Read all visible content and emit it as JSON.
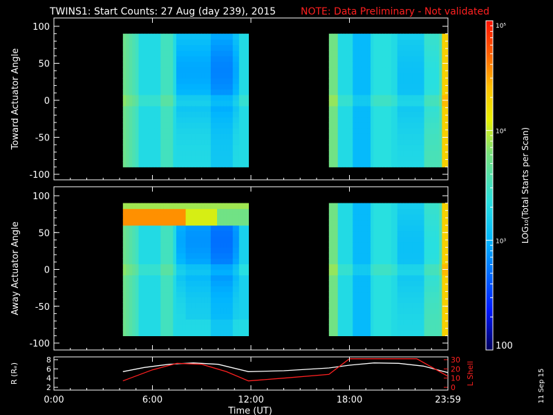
{
  "title": "TWINS1: Start Counts: 27 Aug (day 239), 2015",
  "note": "NOTE: Data Preliminary - Not validated",
  "footer_date": "11 Sep 15",
  "colors": {
    "background": "#000000",
    "axes": "#ffffff",
    "note": "#ff2020",
    "lshell": "#ff2020",
    "radius": "#ffffff"
  },
  "chart_data": [
    {
      "type": "heatmap",
      "panel": "top",
      "ylabel": "Toward Actuator Angle",
      "ylim": [
        -100,
        100
      ],
      "yticks": [
        -100,
        -50,
        0,
        50,
        100
      ],
      "xlim": [
        0,
        24
      ],
      "grid": false,
      "data_blocks": [
        {
          "t_start": 4.2,
          "t_end": 11.85
        },
        {
          "t_start": 16.75,
          "t_end": 24.0
        }
      ],
      "angle_range": [
        -90,
        90
      ],
      "typical_log_counts": 3.3,
      "notes": "yellow-green near 4-5 UT and 16.8 UT, blue band around 8-11 UT"
    },
    {
      "type": "heatmap",
      "panel": "middle",
      "ylabel": "Away Actuator Angle",
      "ylim": [
        -100,
        100
      ],
      "yticks": [
        -100,
        -50,
        0,
        50,
        100
      ],
      "xlim": [
        0,
        24
      ],
      "grid": false,
      "data_blocks": [
        {
          "t_start": 4.2,
          "t_end": 11.85
        },
        {
          "t_start": 16.75,
          "t_end": 24.0
        }
      ],
      "angle_range": [
        -90,
        90
      ],
      "typical_log_counts": 3.3,
      "notes": "red-orange band near +75 deg from 4.2 to ~8 UT"
    },
    {
      "type": "line",
      "panel": "bottom",
      "xlabel": "Time (UT)",
      "xlim": [
        0,
        24
      ],
      "xticks": [
        "0:00",
        "6:00",
        "12:00",
        "18:00",
        "23:59"
      ],
      "left_axis": {
        "label": "R (Rₑ)",
        "ylim": [
          2,
          8
        ],
        "ticks": [
          2,
          4,
          6,
          8
        ]
      },
      "right_axis": {
        "label": "L Shell",
        "ylim": [
          0,
          30
        ],
        "ticks": [
          0,
          10,
          20,
          30
        ]
      },
      "series": [
        {
          "name": "R",
          "axis": "left",
          "x": [
            4.2,
            5.5,
            7.0,
            8.5,
            10.0,
            11.85,
            14.0,
            16.75,
            18.0,
            19.5,
            21.0,
            22.5,
            24.0
          ],
          "y": [
            5.4,
            6.3,
            7.0,
            7.3,
            7.0,
            5.4,
            5.6,
            6.2,
            6.8,
            7.3,
            7.2,
            6.6,
            5.2
          ]
        },
        {
          "name": "L Shell",
          "axis": "right",
          "x": [
            4.2,
            6.0,
            7.5,
            9.0,
            10.5,
            11.85,
            14.0,
            16.75,
            18.0,
            18.1,
            22.0,
            22.1,
            24.0
          ],
          "y": [
            7,
            19,
            26,
            25,
            17,
            7,
            10,
            14,
            31,
            31,
            31,
            31,
            12
          ]
        }
      ]
    },
    {
      "type": "heatmap",
      "panel": "colorbar",
      "label": "LOG₁₀(Total Starts per Scan)",
      "scale": "log",
      "range": [
        100,
        100000
      ],
      "ticks": [
        {
          "value": 100,
          "label": "100"
        },
        {
          "value": 1000,
          "label": "10³"
        },
        {
          "value": 10000,
          "label": "10⁴"
        },
        {
          "value": 100000,
          "label": "10⁵"
        }
      ]
    }
  ]
}
